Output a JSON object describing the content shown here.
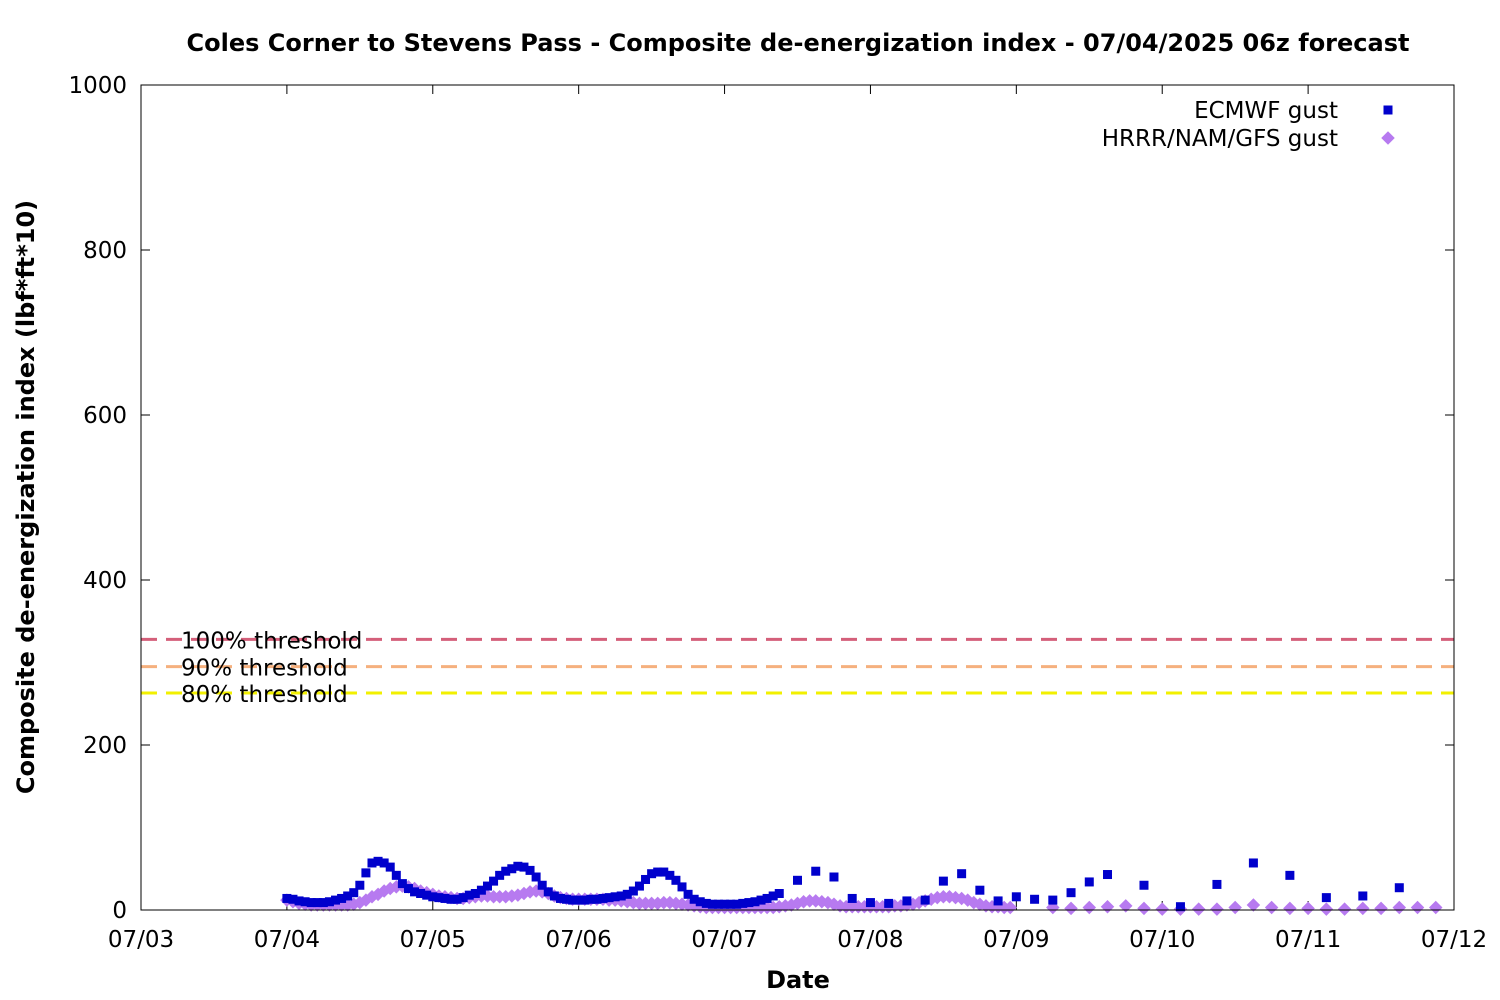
{
  "chart_data": {
    "type": "scatter",
    "title": "Coles Corner to Stevens Pass - Composite de-energization index - 07/04/2025 06z forecast",
    "xlabel": "Date",
    "ylabel": "Composite de-energization index (lbf*ft*10)",
    "xlim": [
      "07/03",
      "07/12"
    ],
    "ylim": [
      0,
      1000
    ],
    "x_ticks": [
      "07/03",
      "07/04",
      "07/05",
      "07/06",
      "07/07",
      "07/08",
      "07/09",
      "07/10",
      "07/11",
      "07/12"
    ],
    "y_ticks": [
      0,
      200,
      400,
      600,
      800,
      1000
    ],
    "grid": false,
    "legend_position": "top-right",
    "thresholds": [
      {
        "label": "100% threshold",
        "value": 328,
        "color": "#d45f7a"
      },
      {
        "label": "90% threshold",
        "value": 295,
        "color": "#f5b07e"
      },
      {
        "label": "80% threshold",
        "value": 263,
        "color": "#f2f000"
      }
    ],
    "series": [
      {
        "name": "ECMWF gust",
        "color": "#0000cc",
        "marker": "square",
        "points": [
          [
            "07/04 00:00",
            14
          ],
          [
            "07/04 01:00",
            13
          ],
          [
            "07/04 02:00",
            11
          ],
          [
            "07/04 03:00",
            10
          ],
          [
            "07/04 04:00",
            9
          ],
          [
            "07/04 05:00",
            9
          ],
          [
            "07/04 06:00",
            9
          ],
          [
            "07/04 07:00",
            10
          ],
          [
            "07/04 08:00",
            12
          ],
          [
            "07/04 09:00",
            14
          ],
          [
            "07/04 10:00",
            17
          ],
          [
            "07/04 11:00",
            21
          ],
          [
            "07/04 12:00",
            30
          ],
          [
            "07/04 13:00",
            45
          ],
          [
            "07/04 14:00",
            57
          ],
          [
            "07/04 15:00",
            59
          ],
          [
            "07/04 16:00",
            57
          ],
          [
            "07/04 17:00",
            52
          ],
          [
            "07/04 18:00",
            42
          ],
          [
            "07/04 19:00",
            32
          ],
          [
            "07/04 20:00",
            26
          ],
          [
            "07/04 21:00",
            22
          ],
          [
            "07/04 22:00",
            20
          ],
          [
            "07/04 23:00",
            18
          ],
          [
            "07/05 00:00",
            16
          ],
          [
            "07/05 01:00",
            15
          ],
          [
            "07/05 02:00",
            14
          ],
          [
            "07/05 03:00",
            13
          ],
          [
            "07/05 04:00",
            13
          ],
          [
            "07/05 05:00",
            15
          ],
          [
            "07/05 06:00",
            18
          ],
          [
            "07/05 07:00",
            20
          ],
          [
            "07/05 08:00",
            24
          ],
          [
            "07/05 09:00",
            29
          ],
          [
            "07/05 10:00",
            35
          ],
          [
            "07/05 11:00",
            42
          ],
          [
            "07/05 12:00",
            47
          ],
          [
            "07/05 13:00",
            50
          ],
          [
            "07/05 14:00",
            53
          ],
          [
            "07/05 15:00",
            52
          ],
          [
            "07/05 16:00",
            48
          ],
          [
            "07/05 17:00",
            40
          ],
          [
            "07/05 18:00",
            30
          ],
          [
            "07/05 19:00",
            22
          ],
          [
            "07/05 20:00",
            17
          ],
          [
            "07/05 21:00",
            14
          ],
          [
            "07/05 22:00",
            13
          ],
          [
            "07/05 23:00",
            12
          ],
          [
            "07/06 00:00",
            12
          ],
          [
            "07/06 01:00",
            12
          ],
          [
            "07/06 02:00",
            13
          ],
          [
            "07/06 03:00",
            13
          ],
          [
            "07/06 04:00",
            14
          ],
          [
            "07/06 05:00",
            15
          ],
          [
            "07/06 06:00",
            16
          ],
          [
            "07/06 07:00",
            17
          ],
          [
            "07/06 08:00",
            19
          ],
          [
            "07/06 09:00",
            23
          ],
          [
            "07/06 10:00",
            29
          ],
          [
            "07/06 11:00",
            37
          ],
          [
            "07/06 12:00",
            44
          ],
          [
            "07/06 13:00",
            46
          ],
          [
            "07/06 14:00",
            46
          ],
          [
            "07/06 15:00",
            42
          ],
          [
            "07/06 16:00",
            36
          ],
          [
            "07/06 17:00",
            28
          ],
          [
            "07/06 18:00",
            19
          ],
          [
            "07/06 19:00",
            13
          ],
          [
            "07/06 20:00",
            10
          ],
          [
            "07/06 21:00",
            8
          ],
          [
            "07/06 22:00",
            7
          ],
          [
            "07/06 23:00",
            7
          ],
          [
            "07/07 00:00",
            7
          ],
          [
            "07/07 01:00",
            7
          ],
          [
            "07/07 02:00",
            7
          ],
          [
            "07/07 03:00",
            8
          ],
          [
            "07/07 04:00",
            9
          ],
          [
            "07/07 05:00",
            10
          ],
          [
            "07/07 06:00",
            12
          ],
          [
            "07/07 07:00",
            14
          ],
          [
            "07/07 08:00",
            17
          ],
          [
            "07/07 09:00",
            20
          ],
          [
            "07/07 12:00",
            36
          ],
          [
            "07/07 15:00",
            47
          ],
          [
            "07/07 18:00",
            40
          ],
          [
            "07/07 21:00",
            14
          ],
          [
            "07/08 00:00",
            9
          ],
          [
            "07/08 03:00",
            8
          ],
          [
            "07/08 06:00",
            11
          ],
          [
            "07/08 09:00",
            12
          ],
          [
            "07/08 12:00",
            35
          ],
          [
            "07/08 15:00",
            44
          ],
          [
            "07/08 18:00",
            24
          ],
          [
            "07/08 21:00",
            11
          ],
          [
            "07/09 00:00",
            16
          ],
          [
            "07/09 03:00",
            13
          ],
          [
            "07/09 06:00",
            12
          ],
          [
            "07/09 09:00",
            21
          ],
          [
            "07/09 12:00",
            34
          ],
          [
            "07/09 15:00",
            43
          ],
          [
            "07/09 21:00",
            30
          ],
          [
            "07/10 03:00",
            4
          ],
          [
            "07/10 09:00",
            31
          ],
          [
            "07/10 15:00",
            57
          ],
          [
            "07/10 21:00",
            42
          ],
          [
            "07/11 03:00",
            15
          ],
          [
            "07/11 09:00",
            17
          ],
          [
            "07/11 15:00",
            27
          ]
        ]
      },
      {
        "name": "HRRR/NAM/GFS gust",
        "color": "#b77af0",
        "marker": "diamond",
        "points": [
          [
            "07/04 00:00",
            12
          ],
          [
            "07/04 01:00",
            10
          ],
          [
            "07/04 02:00",
            8
          ],
          [
            "07/04 03:00",
            7
          ],
          [
            "07/04 04:00",
            6
          ],
          [
            "07/04 05:00",
            6
          ],
          [
            "07/04 06:00",
            6
          ],
          [
            "07/04 07:00",
            6
          ],
          [
            "07/04 08:00",
            6
          ],
          [
            "07/04 09:00",
            6
          ],
          [
            "07/04 10:00",
            6
          ],
          [
            "07/04 11:00",
            7
          ],
          [
            "07/04 12:00",
            9
          ],
          [
            "07/04 13:00",
            12
          ],
          [
            "07/04 14:00",
            16
          ],
          [
            "07/04 15:00",
            19
          ],
          [
            "07/04 16:00",
            23
          ],
          [
            "07/04 17:00",
            26
          ],
          [
            "07/04 18:00",
            28
          ],
          [
            "07/04 19:00",
            29
          ],
          [
            "07/04 20:00",
            28
          ],
          [
            "07/04 21:00",
            26
          ],
          [
            "07/04 22:00",
            23
          ],
          [
            "07/04 23:00",
            21
          ],
          [
            "07/05 00:00",
            19
          ],
          [
            "07/05 01:00",
            17
          ],
          [
            "07/05 02:00",
            16
          ],
          [
            "07/05 03:00",
            15
          ],
          [
            "07/05 04:00",
            14
          ],
          [
            "07/05 05:00",
            14
          ],
          [
            "07/05 06:00",
            15
          ],
          [
            "07/05 07:00",
            16
          ],
          [
            "07/05 08:00",
            17
          ],
          [
            "07/05 09:00",
            17
          ],
          [
            "07/05 10:00",
            16
          ],
          [
            "07/05 11:00",
            16
          ],
          [
            "07/05 12:00",
            16
          ],
          [
            "07/05 13:00",
            17
          ],
          [
            "07/05 14:00",
            18
          ],
          [
            "07/05 15:00",
            20
          ],
          [
            "07/05 16:00",
            22
          ],
          [
            "07/05 17:00",
            23
          ],
          [
            "07/05 18:00",
            22
          ],
          [
            "07/05 19:00",
            20
          ],
          [
            "07/05 20:00",
            17
          ],
          [
            "07/05 21:00",
            15
          ],
          [
            "07/05 22:00",
            14
          ],
          [
            "07/05 23:00",
            13
          ],
          [
            "07/06 00:00",
            13
          ],
          [
            "07/06 01:00",
            13
          ],
          [
            "07/06 02:00",
            13
          ],
          [
            "07/06 03:00",
            13
          ],
          [
            "07/06 04:00",
            13
          ],
          [
            "07/06 05:00",
            12
          ],
          [
            "07/06 06:00",
            12
          ],
          [
            "07/06 07:00",
            11
          ],
          [
            "07/06 08:00",
            10
          ],
          [
            "07/06 09:00",
            9
          ],
          [
            "07/06 10:00",
            8
          ],
          [
            "07/06 11:00",
            8
          ],
          [
            "07/06 12:00",
            8
          ],
          [
            "07/06 13:00",
            8
          ],
          [
            "07/06 14:00",
            9
          ],
          [
            "07/06 15:00",
            9
          ],
          [
            "07/06 16:00",
            8
          ],
          [
            "07/06 17:00",
            7
          ],
          [
            "07/06 18:00",
            6
          ],
          [
            "07/06 19:00",
            5
          ],
          [
            "07/06 20:00",
            4
          ],
          [
            "07/06 21:00",
            3
          ],
          [
            "07/06 22:00",
            3
          ],
          [
            "07/06 23:00",
            3
          ],
          [
            "07/07 00:00",
            3
          ],
          [
            "07/07 01:00",
            3
          ],
          [
            "07/07 02:00",
            3
          ],
          [
            "07/07 03:00",
            3
          ],
          [
            "07/07 04:00",
            3
          ],
          [
            "07/07 05:00",
            3
          ],
          [
            "07/07 06:00",
            3
          ],
          [
            "07/07 07:00",
            3
          ],
          [
            "07/07 08:00",
            3
          ],
          [
            "07/07 09:00",
            4
          ],
          [
            "07/07 10:00",
            5
          ],
          [
            "07/07 11:00",
            6
          ],
          [
            "07/07 12:00",
            8
          ],
          [
            "07/07 13:00",
            10
          ],
          [
            "07/07 14:00",
            11
          ],
          [
            "07/07 15:00",
            11
          ],
          [
            "07/07 16:00",
            10
          ],
          [
            "07/07 17:00",
            9
          ],
          [
            "07/07 18:00",
            7
          ],
          [
            "07/07 19:00",
            5
          ],
          [
            "07/07 20:00",
            4
          ],
          [
            "07/07 21:00",
            4
          ],
          [
            "07/07 22:00",
            4
          ],
          [
            "07/07 23:00",
            4
          ],
          [
            "07/08 00:00",
            4
          ],
          [
            "07/08 01:00",
            4
          ],
          [
            "07/08 02:00",
            4
          ],
          [
            "07/08 03:00",
            4
          ],
          [
            "07/08 04:00",
            5
          ],
          [
            "07/08 05:00",
            5
          ],
          [
            "07/08 06:00",
            6
          ],
          [
            "07/08 07:00",
            7
          ],
          [
            "07/08 08:00",
            9
          ],
          [
            "07/08 09:00",
            11
          ],
          [
            "07/08 10:00",
            13
          ],
          [
            "07/08 11:00",
            15
          ],
          [
            "07/08 12:00",
            16
          ],
          [
            "07/08 13:00",
            16
          ],
          [
            "07/08 14:00",
            15
          ],
          [
            "07/08 15:00",
            14
          ],
          [
            "07/08 16:00",
            12
          ],
          [
            "07/08 17:00",
            9
          ],
          [
            "07/08 18:00",
            7
          ],
          [
            "07/08 19:00",
            5
          ],
          [
            "07/08 20:00",
            4
          ],
          [
            "07/08 21:00",
            4
          ],
          [
            "07/08 22:00",
            3
          ],
          [
            "07/08 23:00",
            3
          ],
          [
            "07/09 06:00",
            3
          ],
          [
            "07/09 09:00",
            2
          ],
          [
            "07/09 12:00",
            3
          ],
          [
            "07/09 15:00",
            4
          ],
          [
            "07/09 18:00",
            5
          ],
          [
            "07/09 21:00",
            2
          ],
          [
            "07/10 00:00",
            1
          ],
          [
            "07/10 03:00",
            1
          ],
          [
            "07/10 06:00",
            1
          ],
          [
            "07/10 09:00",
            1
          ],
          [
            "07/10 12:00",
            3
          ],
          [
            "07/10 15:00",
            6
          ],
          [
            "07/10 18:00",
            3
          ],
          [
            "07/10 21:00",
            2
          ],
          [
            "07/11 00:00",
            2
          ],
          [
            "07/11 03:00",
            1
          ],
          [
            "07/11 06:00",
            1
          ],
          [
            "07/11 09:00",
            2
          ],
          [
            "07/11 12:00",
            2
          ],
          [
            "07/11 15:00",
            3
          ],
          [
            "07/11 18:00",
            3
          ],
          [
            "07/11 21:00",
            3
          ]
        ]
      }
    ]
  }
}
